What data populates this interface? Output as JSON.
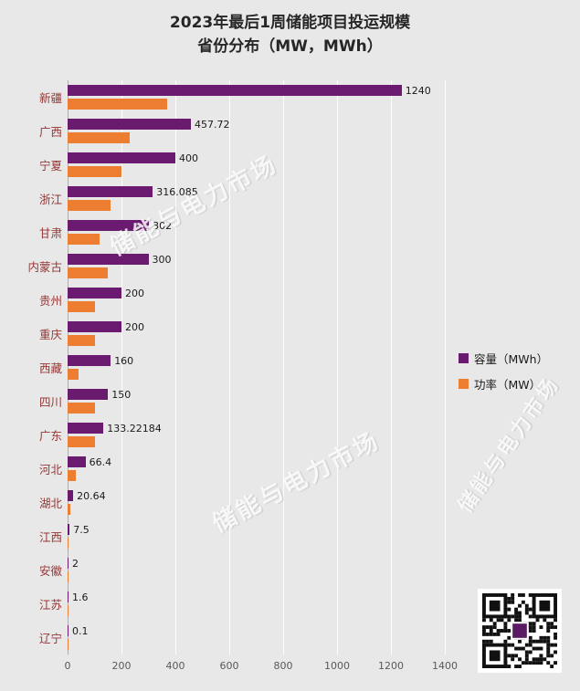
{
  "title": {
    "line1": "2023年最后1周储能项目投运规模",
    "line2": "省份分布（MW，MWh）"
  },
  "legend": [
    {
      "label": "容量（MWh）",
      "color": "#6a1b6f"
    },
    {
      "label": "功率（MW）",
      "color": "#ed7d31"
    }
  ],
  "watermark": "储能与电力市场",
  "chart_data": {
    "type": "bar",
    "orientation": "horizontal",
    "title": "2023年最后1周储能项目投运规模 省份分布（MW，MWh）",
    "categories": [
      "新疆",
      "广西",
      "宁夏",
      "浙江",
      "甘肃",
      "内蒙古",
      "贵州",
      "重庆",
      "西藏",
      "四川",
      "广东",
      "河北",
      "湖北",
      "江西",
      "安徽",
      "江苏",
      "辽宁"
    ],
    "series": [
      {
        "name": "容量（MWh）",
        "color": "#6a1b6f",
        "values": [
          1240,
          457.72,
          400,
          316.085,
          302,
          300,
          200,
          200,
          160,
          150,
          133.22184,
          66.4,
          20.64,
          7.5,
          2,
          1.6,
          0.1
        ],
        "labels": [
          "1240",
          "457.72",
          "400",
          "316.085",
          "302",
          "300",
          "200",
          "200",
          "160",
          "150",
          "133.22184",
          "66.4",
          "20.64",
          "7.5",
          "2",
          "1.6",
          "0.1"
        ]
      },
      {
        "name": "功率（MW）",
        "color": "#ed7d31",
        "values": [
          370,
          230,
          200,
          158,
          120,
          150,
          100,
          100,
          40,
          100,
          100,
          30,
          10,
          5,
          2,
          1,
          0.1
        ],
        "values_estimated_from_bars": true
      }
    ],
    "xlim": [
      0,
      1400
    ],
    "x_ticks": [
      0,
      200,
      400,
      600,
      800,
      1000,
      1200,
      1400
    ],
    "grid": "vertical",
    "legend_position": "right-middle"
  }
}
